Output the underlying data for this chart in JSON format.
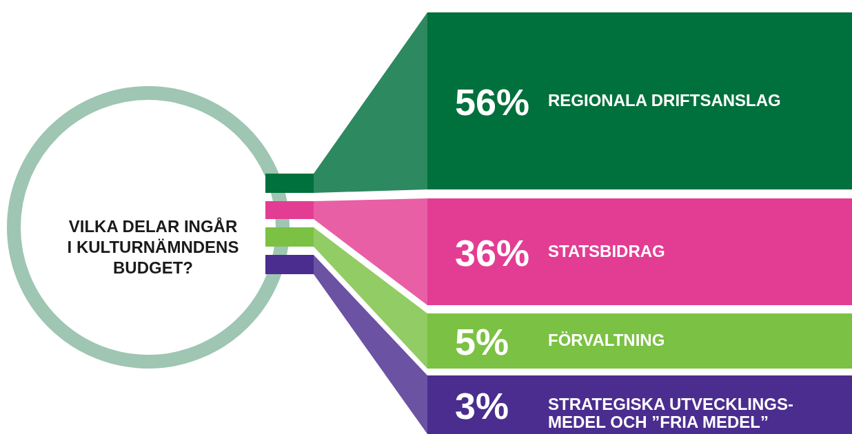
{
  "chart_data": {
    "type": "other",
    "title": "VILKA DELAR INGÅR\nI KULTURNÄMNDENS\nBUDGET?",
    "categories": [
      "REGIONALA DRIFTSANSLAG",
      "STATSBIDRAG",
      "FÖRVALTNING",
      "STRATEGISKA UTVECKLINGS-\nMEDEL OCH ”FRIA MEDEL”"
    ],
    "values": [
      56,
      36,
      5,
      3
    ],
    "value_labels": [
      "56%",
      "36%",
      "5%",
      "3%"
    ],
    "colors": [
      "#00703c",
      "#e33d93",
      "#7bc143",
      "#4b2d8f"
    ]
  }
}
